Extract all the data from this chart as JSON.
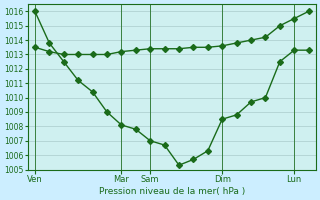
{
  "background_color": "#cceeff",
  "plot_bg_color": "#cff0f0",
  "grid_color": "#aacccc",
  "line_color": "#1a6b1a",
  "title_color": "#1a6b1a",
  "xlabel": "Pression niveau de la mer( hPa )",
  "ylim": [
    1005,
    1016.5
  ],
  "yticks": [
    1005,
    1006,
    1007,
    1008,
    1009,
    1010,
    1011,
    1012,
    1013,
    1014,
    1015,
    1016
  ],
  "day_labels": [
    "Ven",
    "Mar",
    "Sam",
    "Dim",
    "Lun"
  ],
  "day_positions": [
    0,
    6,
    8,
    13,
    18
  ],
  "line1_x": [
    0,
    1,
    2,
    3,
    4,
    5,
    6,
    7,
    8,
    9,
    10,
    11,
    12,
    13,
    14,
    15,
    16,
    17,
    18,
    19
  ],
  "line1_y": [
    1016.0,
    1013.8,
    1012.5,
    1011.2,
    1010.4,
    1009.0,
    1008.1,
    1007.8,
    1007.0,
    1006.7,
    1005.3,
    1005.7,
    1006.3,
    1008.5,
    1008.8,
    1009.7,
    1010.0,
    1012.5,
    1013.3,
    1013.3
  ],
  "line2_x": [
    0,
    1,
    2,
    3,
    4,
    5,
    6,
    7,
    8,
    9,
    10,
    11,
    12,
    13,
    14,
    15,
    16,
    17,
    18,
    19
  ],
  "line2_y": [
    1013.5,
    1013.2,
    1013.0,
    1013.0,
    1013.0,
    1013.0,
    1013.2,
    1013.3,
    1013.4,
    1013.4,
    1013.4,
    1013.5,
    1013.5,
    1013.6,
    1013.8,
    1014.0,
    1014.2,
    1015.0,
    1015.5,
    1016.0
  ],
  "marker_size": 3,
  "linewidth": 1.0
}
